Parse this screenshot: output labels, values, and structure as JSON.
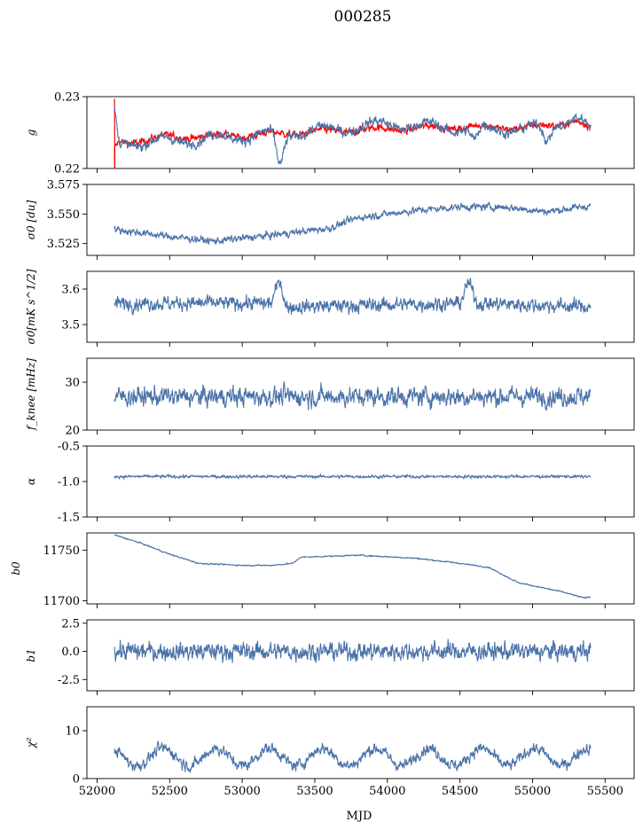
{
  "title": "000285",
  "colors": {
    "series": "#4a72a8",
    "fit": "#ff0000",
    "axis": "#000000"
  },
  "chart_data": [
    {
      "type": "line",
      "ylabel": "g",
      "ylim": [
        0.22,
        0.23
      ],
      "yticks": [
        0.22,
        0.23
      ],
      "series": [
        {
          "name": "g",
          "color": "#ff0000",
          "start": 52120,
          "end": 55400,
          "base": 0.2243,
          "amp": 0.0003,
          "noise": 0.0005,
          "trend": [
            [
              52120,
              0.2225
            ],
            [
              52150,
              0.2236
            ],
            [
              52500,
              0.2244
            ],
            [
              53000,
              0.2246
            ],
            [
              53500,
              0.2251
            ],
            [
              54000,
              0.2255
            ],
            [
              54500,
              0.2258
            ],
            [
              55000,
              0.2257
            ],
            [
              55300,
              0.2266
            ],
            [
              55400,
              0.2255
            ]
          ],
          "spike": [
            52120,
            0.2297
          ]
        },
        {
          "name": "g_obs",
          "color": "#4a72a8",
          "start": 52120,
          "end": 55400,
          "base": 0.2243,
          "amp": 0.0006,
          "noise": 0.0007,
          "trend": [
            [
              52120,
              0.228
            ],
            [
              52150,
              0.2235
            ],
            [
              52500,
              0.2238
            ],
            [
              53000,
              0.2245
            ],
            [
              53500,
              0.2252
            ],
            [
              54000,
              0.2262
            ],
            [
              54500,
              0.2256
            ],
            [
              55000,
              0.2255
            ],
            [
              55300,
              0.227
            ],
            [
              55400,
              0.2255
            ]
          ],
          "dips": [
            [
              53260,
              0.2205
            ],
            [
              54600,
              0.2237
            ],
            [
              55100,
              0.2238
            ]
          ]
        }
      ]
    },
    {
      "type": "line",
      "ylabel": "σ0 [du]",
      "ylim": [
        3.515,
        3.575
      ],
      "yticks": [
        3.525,
        3.55,
        3.575
      ],
      "tickfmt": 3,
      "series": [
        {
          "name": "sigma0_du",
          "color": "#4a72a8",
          "start": 52120,
          "end": 55400,
          "noise": 0.003,
          "trend": [
            [
              52120,
              3.537
            ],
            [
              52500,
              3.531
            ],
            [
              52800,
              3.527
            ],
            [
              53200,
              3.532
            ],
            [
              53600,
              3.538
            ],
            [
              53800,
              3.547
            ],
            [
              54200,
              3.553
            ],
            [
              54500,
              3.556
            ],
            [
              54800,
              3.556
            ],
            [
              55100,
              3.552
            ],
            [
              55400,
              3.557
            ]
          ]
        }
      ]
    },
    {
      "type": "line",
      "ylabel": "σ0[mK s^1/2]",
      "ylim": [
        3.45,
        3.65
      ],
      "yticks": [
        3.5,
        3.6
      ],
      "tickfmt": 1,
      "series": [
        {
          "name": "sigma0_mk",
          "color": "#4a72a8",
          "start": 52120,
          "end": 55400,
          "noise": 0.02,
          "trend": [
            [
              52120,
              3.56
            ],
            [
              53200,
              3.56
            ],
            [
              53260,
              3.63
            ],
            [
              53300,
              3.55
            ],
            [
              54500,
              3.56
            ],
            [
              54560,
              3.62
            ],
            [
              54620,
              3.56
            ],
            [
              55400,
              3.55
            ]
          ]
        }
      ]
    },
    {
      "type": "line",
      "ylabel": "f_knee [mHz]",
      "ylim": [
        20,
        35
      ],
      "yticks": [
        20,
        30
      ],
      "series": [
        {
          "name": "fknee",
          "color": "#4a72a8",
          "start": 52120,
          "end": 55400,
          "noise": 2.0,
          "trend": [
            [
              52120,
              27
            ],
            [
              55400,
              27
            ]
          ]
        }
      ]
    },
    {
      "type": "line",
      "ylabel": "α",
      "ylim": [
        -1.5,
        -0.5
      ],
      "yticks": [
        -1.5,
        -1.0,
        -0.5
      ],
      "tickfmt": 1,
      "series": [
        {
          "name": "alpha",
          "color": "#4a72a8",
          "start": 52120,
          "end": 55400,
          "noise": 0.02,
          "trend": [
            [
              52120,
              -0.93
            ],
            [
              55400,
              -0.93
            ]
          ]
        }
      ]
    },
    {
      "type": "line",
      "ylabel": "b0",
      "ylim": [
        11697,
        11767
      ],
      "yticks": [
        11700,
        11750
      ],
      "series": [
        {
          "name": "b0",
          "color": "#4a72a8",
          "start": 52120,
          "end": 55400,
          "noise": 0.6,
          "trend": [
            [
              52120,
              11765
            ],
            [
              52300,
              11757
            ],
            [
              52500,
              11746
            ],
            [
              52700,
              11737
            ],
            [
              53000,
              11735
            ],
            [
              53200,
              11735
            ],
            [
              53350,
              11737
            ],
            [
              53400,
              11743
            ],
            [
              53800,
              11745
            ],
            [
              54200,
              11742
            ],
            [
              54500,
              11737
            ],
            [
              54700,
              11733
            ],
            [
              54900,
              11718
            ],
            [
              55200,
              11709
            ],
            [
              55350,
              11703
            ],
            [
              55400,
              11704
            ]
          ]
        }
      ]
    },
    {
      "type": "line",
      "ylabel": "b1",
      "ylim": [
        -3.5,
        2.8
      ],
      "yticks": [
        -2.5,
        0.0,
        2.5
      ],
      "tickfmt": 1,
      "series": [
        {
          "name": "b1",
          "color": "#4a72a8",
          "start": 52120,
          "end": 55400,
          "noise": 0.8,
          "trend": [
            [
              52120,
              0.0
            ],
            [
              55400,
              0.0
            ]
          ]
        }
      ]
    },
    {
      "type": "line",
      "ylabel": "χ²",
      "ylim": [
        0,
        15
      ],
      "yticks": [
        0,
        10
      ],
      "series": [
        {
          "name": "chi2",
          "color": "#4a72a8",
          "start": 52120,
          "end": 55400,
          "base": 4.5,
          "amp": 1.8,
          "noise": 1.2,
          "trend": [
            [
              52120,
              4.5
            ],
            [
              55400,
              4.5
            ]
          ]
        }
      ]
    }
  ],
  "xaxis": {
    "label": "MJD",
    "xlim": [
      51930,
      55700
    ],
    "ticks": [
      52000,
      52500,
      53000,
      53500,
      54000,
      54500,
      55000,
      55500
    ]
  }
}
